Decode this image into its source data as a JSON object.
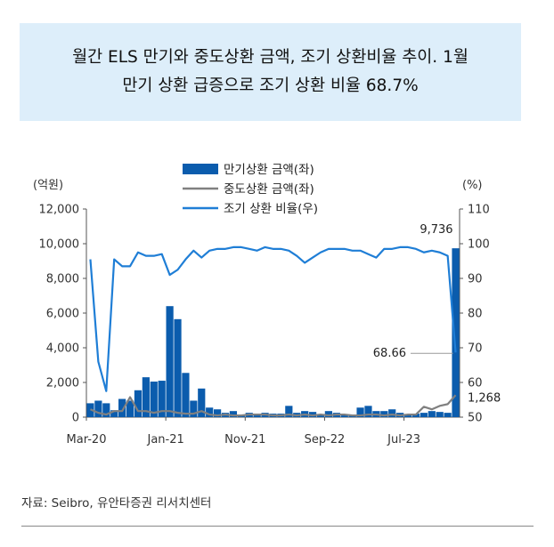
{
  "title_lines": [
    "월간 ELS 만기와 중도상환 금액, 조기 상환비율 추이. 1월",
    "만기 상환 급증으로 조기 상환 비율 68.7%"
  ],
  "source": "자료: Seibro, 유안타증권 리서치센터",
  "chart_data": {
    "type": "bar+line",
    "left_axis_unit": "(억원)",
    "right_axis_unit": "(%)",
    "left_ylim": [
      0,
      12000
    ],
    "left_ticks": [
      "0",
      "2,000",
      "4,000",
      "6,000",
      "8,000",
      "10,000",
      "12,000"
    ],
    "right_ylim": [
      50,
      110
    ],
    "right_ticks": [
      "50",
      "60",
      "70",
      "80",
      "90",
      "100",
      "110"
    ],
    "x_tick_labels": [
      "Mar-20",
      "Jan-21",
      "Nov-21",
      "Sep-22",
      "Jul-23"
    ],
    "x_tick_index": [
      0,
      10,
      20,
      30,
      40
    ],
    "colors": {
      "bar": "#0b5cad",
      "mid": "#808080",
      "rate": "#1f7ed6"
    },
    "legend": [
      "만기상환 금액(좌)",
      "중도상환 금액(좌)",
      "조기 상환 비율(우)"
    ],
    "series": [
      {
        "name": "만기상환 금액(좌)",
        "values": [
          800,
          950,
          800,
          400,
          1050,
          950,
          1550,
          2300,
          2050,
          2100,
          6400,
          5650,
          2550,
          950,
          1650,
          550,
          450,
          250,
          350,
          100,
          250,
          200,
          250,
          200,
          200,
          650,
          250,
          350,
          300,
          150,
          350,
          250,
          150,
          100,
          550,
          650,
          350,
          350,
          450,
          250,
          150,
          200,
          250,
          350,
          300,
          250,
          9736
        ]
      },
      {
        "name": "중도상환 금액(좌)",
        "values": [
          450,
          250,
          150,
          350,
          350,
          1150,
          350,
          350,
          250,
          350,
          350,
          250,
          200,
          200,
          350,
          150,
          100,
          150,
          100,
          100,
          150,
          150,
          150,
          100,
          100,
          150,
          100,
          150,
          100,
          150,
          100,
          150,
          150,
          100,
          100,
          150,
          150,
          100,
          150,
          100,
          150,
          150,
          600,
          450,
          650,
          750,
          1268
        ]
      },
      {
        "name": "조기 상환 비율(우)",
        "values": [
          95.5,
          66,
          57.5,
          95.5,
          93.5,
          93.5,
          97.5,
          96.5,
          96.5,
          97,
          91,
          92.5,
          95.5,
          98,
          96,
          98,
          98.5,
          98.5,
          99,
          99,
          98.5,
          98,
          99,
          98.5,
          98.5,
          98,
          96.5,
          94.5,
          96,
          97.5,
          98.5,
          98.5,
          98.5,
          98,
          98,
          97,
          96,
          98.5,
          98.5,
          99,
          99,
          98.5,
          97.5,
          98,
          97.5,
          96.5,
          68.66
        ]
      }
    ],
    "annotations": [
      "9,736",
      "68.66",
      "1,268"
    ]
  }
}
